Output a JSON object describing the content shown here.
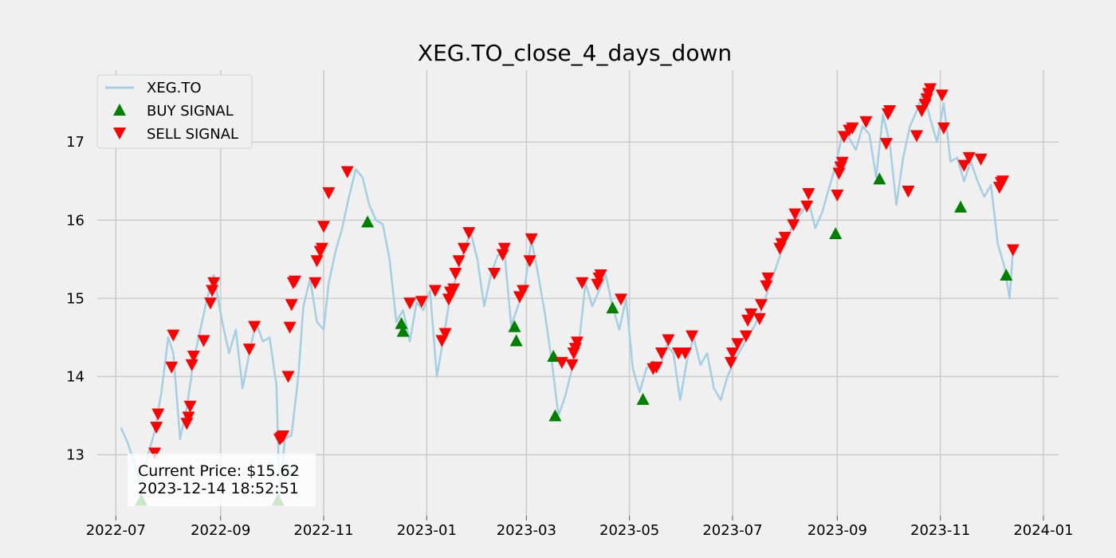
{
  "chart_data": {
    "type": "line",
    "title": "XEG.TO_close_4_days_down",
    "xlabel": "",
    "ylabel": "",
    "x_ticks": [
      "2022-07",
      "2022-09",
      "2022-11",
      "2023-01",
      "2023-03",
      "2023-05",
      "2023-07",
      "2023-09",
      "2023-11",
      "2024-01"
    ],
    "y_ticks": [
      13,
      14,
      15,
      16,
      17
    ],
    "xlim": [
      "2022-06-20",
      "2024-01-10"
    ],
    "ylim": [
      12.22,
      17.92
    ],
    "grid": true,
    "legend_position": "top-left",
    "colors": {
      "line": "#a6cee3",
      "buy": "#008000",
      "sell": "#ff0000",
      "background": "#f0f0f0",
      "grid": "#cbcbcb"
    },
    "series": [
      {
        "name": "XEG.TO",
        "points": [
          [
            "2022-07-04",
            13.35
          ],
          [
            "2022-07-08",
            13.15
          ],
          [
            "2022-07-12",
            12.9
          ],
          [
            "2022-07-16",
            12.6
          ],
          [
            "2022-07-20",
            13.0
          ],
          [
            "2022-07-24",
            13.3
          ],
          [
            "2022-07-28",
            13.8
          ],
          [
            "2022-08-01",
            14.5
          ],
          [
            "2022-08-04",
            14.3
          ],
          [
            "2022-08-08",
            13.2
          ],
          [
            "2022-08-12",
            13.6
          ],
          [
            "2022-08-16",
            14.2
          ],
          [
            "2022-08-20",
            14.6
          ],
          [
            "2022-08-24",
            15.0
          ],
          [
            "2022-08-28",
            15.3
          ],
          [
            "2022-09-02",
            14.7
          ],
          [
            "2022-09-06",
            14.3
          ],
          [
            "2022-09-10",
            14.6
          ],
          [
            "2022-09-14",
            13.85
          ],
          [
            "2022-09-18",
            14.3
          ],
          [
            "2022-09-22",
            14.7
          ],
          [
            "2022-09-26",
            14.45
          ],
          [
            "2022-09-30",
            14.5
          ],
          [
            "2022-10-04",
            13.9
          ],
          [
            "2022-10-06",
            12.45
          ],
          [
            "2022-10-09",
            13.2
          ],
          [
            "2022-10-13",
            13.25
          ],
          [
            "2022-10-17",
            14.0
          ],
          [
            "2022-10-20",
            14.9
          ],
          [
            "2022-10-24",
            15.25
          ],
          [
            "2022-10-28",
            14.7
          ],
          [
            "2022-11-01",
            14.6
          ],
          [
            "2022-11-04",
            15.2
          ],
          [
            "2022-11-08",
            15.6
          ],
          [
            "2022-11-12",
            15.9
          ],
          [
            "2022-11-16",
            16.3
          ],
          [
            "2022-11-20",
            16.65
          ],
          [
            "2022-11-24",
            16.55
          ],
          [
            "2022-11-28",
            16.2
          ],
          [
            "2022-12-02",
            16.0
          ],
          [
            "2022-12-06",
            15.95
          ],
          [
            "2022-12-10",
            15.5
          ],
          [
            "2022-12-14",
            14.7
          ],
          [
            "2022-12-18",
            14.85
          ],
          [
            "2022-12-22",
            14.45
          ],
          [
            "2022-12-26",
            14.95
          ],
          [
            "2022-12-30",
            14.85
          ],
          [
            "2023-01-03",
            15.1
          ],
          [
            "2023-01-07",
            14.0
          ],
          [
            "2023-01-11",
            14.5
          ],
          [
            "2023-01-15",
            15.05
          ],
          [
            "2023-01-19",
            15.3
          ],
          [
            "2023-01-23",
            15.6
          ],
          [
            "2023-01-27",
            15.85
          ],
          [
            "2023-01-31",
            15.5
          ],
          [
            "2023-02-04",
            14.9
          ],
          [
            "2023-02-08",
            15.3
          ],
          [
            "2023-02-12",
            15.55
          ],
          [
            "2023-02-16",
            15.6
          ],
          [
            "2023-02-20",
            14.65
          ],
          [
            "2023-02-24",
            14.9
          ],
          [
            "2023-02-28",
            15.15
          ],
          [
            "2023-03-04",
            15.75
          ],
          [
            "2023-03-08",
            15.3
          ],
          [
            "2023-03-12",
            14.8
          ],
          [
            "2023-03-16",
            14.2
          ],
          [
            "2023-03-20",
            13.5
          ],
          [
            "2023-03-24",
            13.75
          ],
          [
            "2023-03-28",
            14.1
          ],
          [
            "2023-04-01",
            14.4
          ],
          [
            "2023-04-05",
            15.2
          ],
          [
            "2023-04-09",
            14.9
          ],
          [
            "2023-04-13",
            15.1
          ],
          [
            "2023-04-17",
            15.3
          ],
          [
            "2023-04-21",
            14.9
          ],
          [
            "2023-04-25",
            14.6
          ],
          [
            "2023-04-29",
            15.0
          ],
          [
            "2023-05-03",
            14.1
          ],
          [
            "2023-05-07",
            13.8
          ],
          [
            "2023-05-11",
            14.1
          ],
          [
            "2023-05-15",
            14.2
          ],
          [
            "2023-05-19",
            14.1
          ],
          [
            "2023-05-23",
            14.4
          ],
          [
            "2023-05-27",
            14.3
          ],
          [
            "2023-05-31",
            13.7
          ],
          [
            "2023-06-04",
            14.2
          ],
          [
            "2023-06-08",
            14.5
          ],
          [
            "2023-06-12",
            14.15
          ],
          [
            "2023-06-16",
            14.3
          ],
          [
            "2023-06-20",
            13.85
          ],
          [
            "2023-06-24",
            13.7
          ],
          [
            "2023-06-28",
            14.0
          ],
          [
            "2023-07-02",
            14.2
          ],
          [
            "2023-07-06",
            14.35
          ],
          [
            "2023-07-10",
            14.5
          ],
          [
            "2023-07-14",
            14.65
          ],
          [
            "2023-07-18",
            14.85
          ],
          [
            "2023-07-22",
            15.1
          ],
          [
            "2023-07-26",
            15.35
          ],
          [
            "2023-07-30",
            15.6
          ],
          [
            "2023-08-03",
            15.8
          ],
          [
            "2023-08-07",
            16.0
          ],
          [
            "2023-08-11",
            16.1
          ],
          [
            "2023-08-15",
            16.25
          ],
          [
            "2023-08-19",
            15.9
          ],
          [
            "2023-08-23",
            16.1
          ],
          [
            "2023-08-27",
            16.4
          ],
          [
            "2023-08-31",
            16.7
          ],
          [
            "2023-09-04",
            17.1
          ],
          [
            "2023-09-08",
            17.05
          ],
          [
            "2023-09-12",
            16.9
          ],
          [
            "2023-09-16",
            17.2
          ],
          [
            "2023-09-20",
            17.1
          ],
          [
            "2023-09-24",
            16.55
          ],
          [
            "2023-09-28",
            17.35
          ],
          [
            "2023-10-02",
            17.0
          ],
          [
            "2023-10-06",
            16.2
          ],
          [
            "2023-10-10",
            16.8
          ],
          [
            "2023-10-14",
            17.2
          ],
          [
            "2023-10-18",
            17.4
          ],
          [
            "2023-10-22",
            17.65
          ],
          [
            "2023-10-26",
            17.3
          ],
          [
            "2023-10-30",
            17.0
          ],
          [
            "2023-11-03",
            17.5
          ],
          [
            "2023-11-07",
            16.75
          ],
          [
            "2023-11-11",
            16.8
          ],
          [
            "2023-11-15",
            16.5
          ],
          [
            "2023-11-19",
            16.75
          ],
          [
            "2023-11-23",
            16.5
          ],
          [
            "2023-11-27",
            16.3
          ],
          [
            "2023-12-01",
            16.45
          ],
          [
            "2023-12-05",
            15.7
          ],
          [
            "2023-12-09",
            15.4
          ],
          [
            "2023-12-12",
            15.0
          ],
          [
            "2023-12-14",
            15.62
          ]
        ]
      },
      {
        "name": "BUY SIGNAL",
        "marker": "triangle-up",
        "points": [
          [
            "2022-07-16",
            12.42
          ],
          [
            "2022-10-05",
            12.42
          ],
          [
            "2022-11-27",
            15.98
          ],
          [
            "2022-12-17",
            14.68
          ],
          [
            "2022-12-18",
            14.58
          ],
          [
            "2023-02-22",
            14.64
          ],
          [
            "2023-02-23",
            14.46
          ],
          [
            "2023-03-17",
            14.26
          ],
          [
            "2023-03-18",
            13.5
          ],
          [
            "2023-04-21",
            14.88
          ],
          [
            "2023-05-09",
            13.71
          ],
          [
            "2023-08-31",
            15.83
          ],
          [
            "2023-09-26",
            16.53
          ],
          [
            "2023-11-13",
            16.17
          ],
          [
            "2023-12-10",
            15.3
          ]
        ]
      },
      {
        "name": "SELL SIGNAL",
        "marker": "triangle-down",
        "points": [
          [
            "2022-07-24",
            13.02
          ],
          [
            "2022-07-25",
            13.35
          ],
          [
            "2022-07-26",
            13.52
          ],
          [
            "2022-08-03",
            14.12
          ],
          [
            "2022-08-04",
            14.53
          ],
          [
            "2022-08-12",
            13.4
          ],
          [
            "2022-08-13",
            13.48
          ],
          [
            "2022-08-14",
            13.62
          ],
          [
            "2022-08-15",
            14.15
          ],
          [
            "2022-08-16",
            14.26
          ],
          [
            "2022-08-22",
            14.46
          ],
          [
            "2022-08-26",
            14.94
          ],
          [
            "2022-08-27",
            15.1
          ],
          [
            "2022-08-28",
            15.2
          ],
          [
            "2022-09-18",
            14.35
          ],
          [
            "2022-09-21",
            14.64
          ],
          [
            "2022-10-06",
            13.2
          ],
          [
            "2022-10-07",
            13.22
          ],
          [
            "2022-10-08",
            13.24
          ],
          [
            "2022-10-11",
            14.0
          ],
          [
            "2022-10-12",
            14.63
          ],
          [
            "2022-10-13",
            14.92
          ],
          [
            "2022-10-14",
            15.2
          ],
          [
            "2022-10-15",
            15.22
          ],
          [
            "2022-10-27",
            15.2
          ],
          [
            "2022-10-28",
            15.48
          ],
          [
            "2022-10-30",
            15.6
          ],
          [
            "2022-10-31",
            15.64
          ],
          [
            "2022-11-01",
            15.92
          ],
          [
            "2022-11-04",
            16.35
          ],
          [
            "2022-11-15",
            16.62
          ],
          [
            "2022-12-22",
            14.94
          ],
          [
            "2022-12-29",
            14.96
          ],
          [
            "2023-01-06",
            15.1
          ],
          [
            "2023-01-10",
            14.46
          ],
          [
            "2023-01-12",
            14.55
          ],
          [
            "2023-01-14",
            14.99
          ],
          [
            "2023-01-15",
            15.08
          ],
          [
            "2023-01-17",
            15.12
          ],
          [
            "2023-01-18",
            15.32
          ],
          [
            "2023-01-20",
            15.48
          ],
          [
            "2023-01-23",
            15.64
          ],
          [
            "2023-01-26",
            15.84
          ],
          [
            "2023-02-10",
            15.32
          ],
          [
            "2023-02-15",
            15.56
          ],
          [
            "2023-02-16",
            15.64
          ],
          [
            "2023-02-25",
            15.02
          ],
          [
            "2023-02-27",
            15.1
          ],
          [
            "2023-03-03",
            15.48
          ],
          [
            "2023-03-04",
            15.76
          ],
          [
            "2023-03-22",
            14.18
          ],
          [
            "2023-03-28",
            14.15
          ],
          [
            "2023-03-29",
            14.3
          ],
          [
            "2023-03-30",
            14.36
          ],
          [
            "2023-03-31",
            14.44
          ],
          [
            "2023-04-03",
            15.2
          ],
          [
            "2023-04-12",
            15.18
          ],
          [
            "2023-04-13",
            15.26
          ],
          [
            "2023-04-14",
            15.3
          ],
          [
            "2023-04-26",
            14.99
          ],
          [
            "2023-05-15",
            14.1
          ],
          [
            "2023-05-17",
            14.12
          ],
          [
            "2023-05-20",
            14.3
          ],
          [
            "2023-05-24",
            14.47
          ],
          [
            "2023-05-30",
            14.3
          ],
          [
            "2023-06-03",
            14.3
          ],
          [
            "2023-06-07",
            14.52
          ],
          [
            "2023-06-30",
            14.18
          ],
          [
            "2023-07-01",
            14.3
          ],
          [
            "2023-07-04",
            14.42
          ],
          [
            "2023-07-09",
            14.52
          ],
          [
            "2023-07-10",
            14.72
          ],
          [
            "2023-07-12",
            14.8
          ],
          [
            "2023-07-17",
            14.74
          ],
          [
            "2023-07-18",
            14.92
          ],
          [
            "2023-07-21",
            15.16
          ],
          [
            "2023-07-22",
            15.26
          ],
          [
            "2023-07-29",
            15.64
          ],
          [
            "2023-07-30",
            15.7
          ],
          [
            "2023-08-01",
            15.78
          ],
          [
            "2023-08-06",
            15.94
          ],
          [
            "2023-08-07",
            16.08
          ],
          [
            "2023-08-14",
            16.18
          ],
          [
            "2023-08-15",
            16.34
          ],
          [
            "2023-09-01",
            16.32
          ],
          [
            "2023-09-02",
            16.6
          ],
          [
            "2023-09-03",
            16.68
          ],
          [
            "2023-09-04",
            16.74
          ],
          [
            "2023-09-05",
            17.07
          ],
          [
            "2023-09-08",
            17.15
          ],
          [
            "2023-09-10",
            17.18
          ],
          [
            "2023-09-18",
            17.26
          ],
          [
            "2023-09-30",
            16.98
          ],
          [
            "2023-10-01",
            17.36
          ],
          [
            "2023-10-02",
            17.4
          ],
          [
            "2023-10-13",
            16.37
          ],
          [
            "2023-10-18",
            17.08
          ],
          [
            "2023-10-21",
            17.4
          ],
          [
            "2023-10-23",
            17.48
          ],
          [
            "2023-10-24",
            17.55
          ],
          [
            "2023-10-25",
            17.62
          ],
          [
            "2023-10-26",
            17.68
          ],
          [
            "2023-11-02",
            17.6
          ],
          [
            "2023-11-03",
            17.18
          ],
          [
            "2023-11-15",
            16.7
          ],
          [
            "2023-11-18",
            16.8
          ],
          [
            "2023-11-25",
            16.78
          ],
          [
            "2023-12-06",
            16.42
          ],
          [
            "2023-12-07",
            16.48
          ],
          [
            "2023-12-08",
            16.5
          ],
          [
            "2023-12-14",
            15.62
          ]
        ]
      }
    ],
    "annotation": {
      "price_label": "Current Price: $15.62",
      "timestamp": "2023-12-14 18:52:51"
    }
  }
}
